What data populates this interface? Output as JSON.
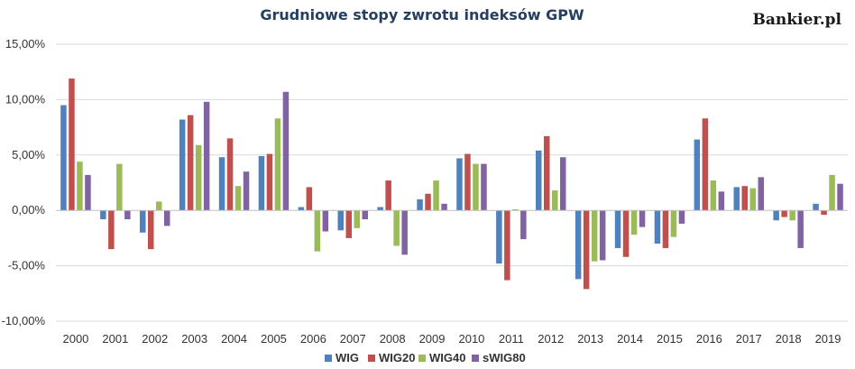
{
  "chart_data": {
    "type": "bar",
    "title": "Grudniowe stopy zwrotu indeksów GPW",
    "brand": "Bankier.pl",
    "categories": [
      "2000",
      "2001",
      "2002",
      "2003",
      "2004",
      "2005",
      "2006",
      "2007",
      "2008",
      "2009",
      "2010",
      "2011",
      "2012",
      "2013",
      "2014",
      "2015",
      "2016",
      "2017",
      "2018",
      "2019"
    ],
    "series": [
      {
        "name": "WIG",
        "color": "#4f81bd",
        "values": [
          9.5,
          -0.8,
          -2.0,
          8.2,
          4.8,
          4.9,
          0.3,
          -1.8,
          0.3,
          1.0,
          4.7,
          -4.8,
          5.4,
          -6.2,
          -3.4,
          -3.0,
          6.4,
          2.1,
          -0.9,
          0.6
        ]
      },
      {
        "name": "WIG20",
        "color": "#c0504d",
        "values": [
          11.9,
          -3.5,
          -3.5,
          8.6,
          6.5,
          5.1,
          2.1,
          -2.5,
          2.7,
          1.5,
          5.1,
          -6.3,
          6.7,
          -7.1,
          -4.2,
          -3.4,
          8.3,
          2.2,
          -0.6,
          -0.4
        ]
      },
      {
        "name": "WIG40",
        "color": "#9bbb59",
        "values": [
          4.4,
          4.2,
          0.8,
          5.9,
          2.2,
          8.3,
          -3.7,
          -1.6,
          -3.2,
          2.7,
          4.2,
          0.1,
          1.8,
          -4.6,
          -2.2,
          -2.4,
          2.7,
          2.0,
          -0.9,
          3.2
        ]
      },
      {
        "name": "sWIG80",
        "color": "#8064a2",
        "values": [
          3.2,
          -0.8,
          -1.4,
          9.8,
          3.5,
          10.7,
          -1.9,
          -0.8,
          -4.0,
          0.6,
          4.2,
          -2.6,
          4.8,
          -4.5,
          -1.5,
          -1.2,
          1.7,
          3.0,
          -3.4,
          2.4
        ]
      }
    ],
    "ylim": [
      -10,
      15
    ],
    "yticks": [
      -10,
      -5,
      0,
      5,
      10,
      15
    ],
    "ytick_labels": [
      "-10,00%",
      "-5,00%",
      "0,00%",
      "5,00%",
      "10,00%",
      "15,00%"
    ],
    "grid": true,
    "legend_position": "bottom-center",
    "xlabel": "",
    "ylabel": ""
  }
}
